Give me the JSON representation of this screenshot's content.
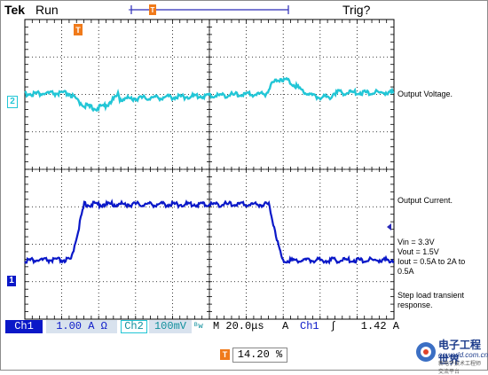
{
  "header": {
    "brand": "Tek",
    "run_state": "Run",
    "trigger_state": "Trig?"
  },
  "channels": {
    "ch2_marker": "2",
    "ch1_marker": "1",
    "trigger_marker": "T"
  },
  "labels": {
    "output_voltage": "Output Voltage.",
    "output_current": "Output Current.",
    "conditions": [
      "Vin = 3.3V",
      "Vout = 1.5V",
      "Iout = 0.5A to 2A to",
      "0.5A"
    ],
    "note": [
      "Step load transient",
      "response."
    ]
  },
  "status_bar": {
    "ch1_label": "Ch1",
    "ch1_scale": "1.00 A Ω",
    "ch2_label": "Ch2",
    "ch2_scale": "100mV",
    "ch2_bw": "ᴮw",
    "timebase": "M 20.0μs",
    "trigger_mode": "A",
    "trigger_source": "Ch1",
    "trigger_slope": "∫",
    "trigger_level": "1.42 A"
  },
  "trigger_position": {
    "icon": "T",
    "value": "14.20 %"
  },
  "watermark": {
    "cn": "电子工程世界",
    "en": "eeworld.com.cn",
    "sub": "新电子技术工程师交流平台"
  },
  "colors": {
    "ch1": "#0a18c8",
    "ch2": "#22c6d6",
    "trigger": "#f07a1a",
    "grid": "#000000",
    "status_bg": "#d8e2ee"
  }
}
